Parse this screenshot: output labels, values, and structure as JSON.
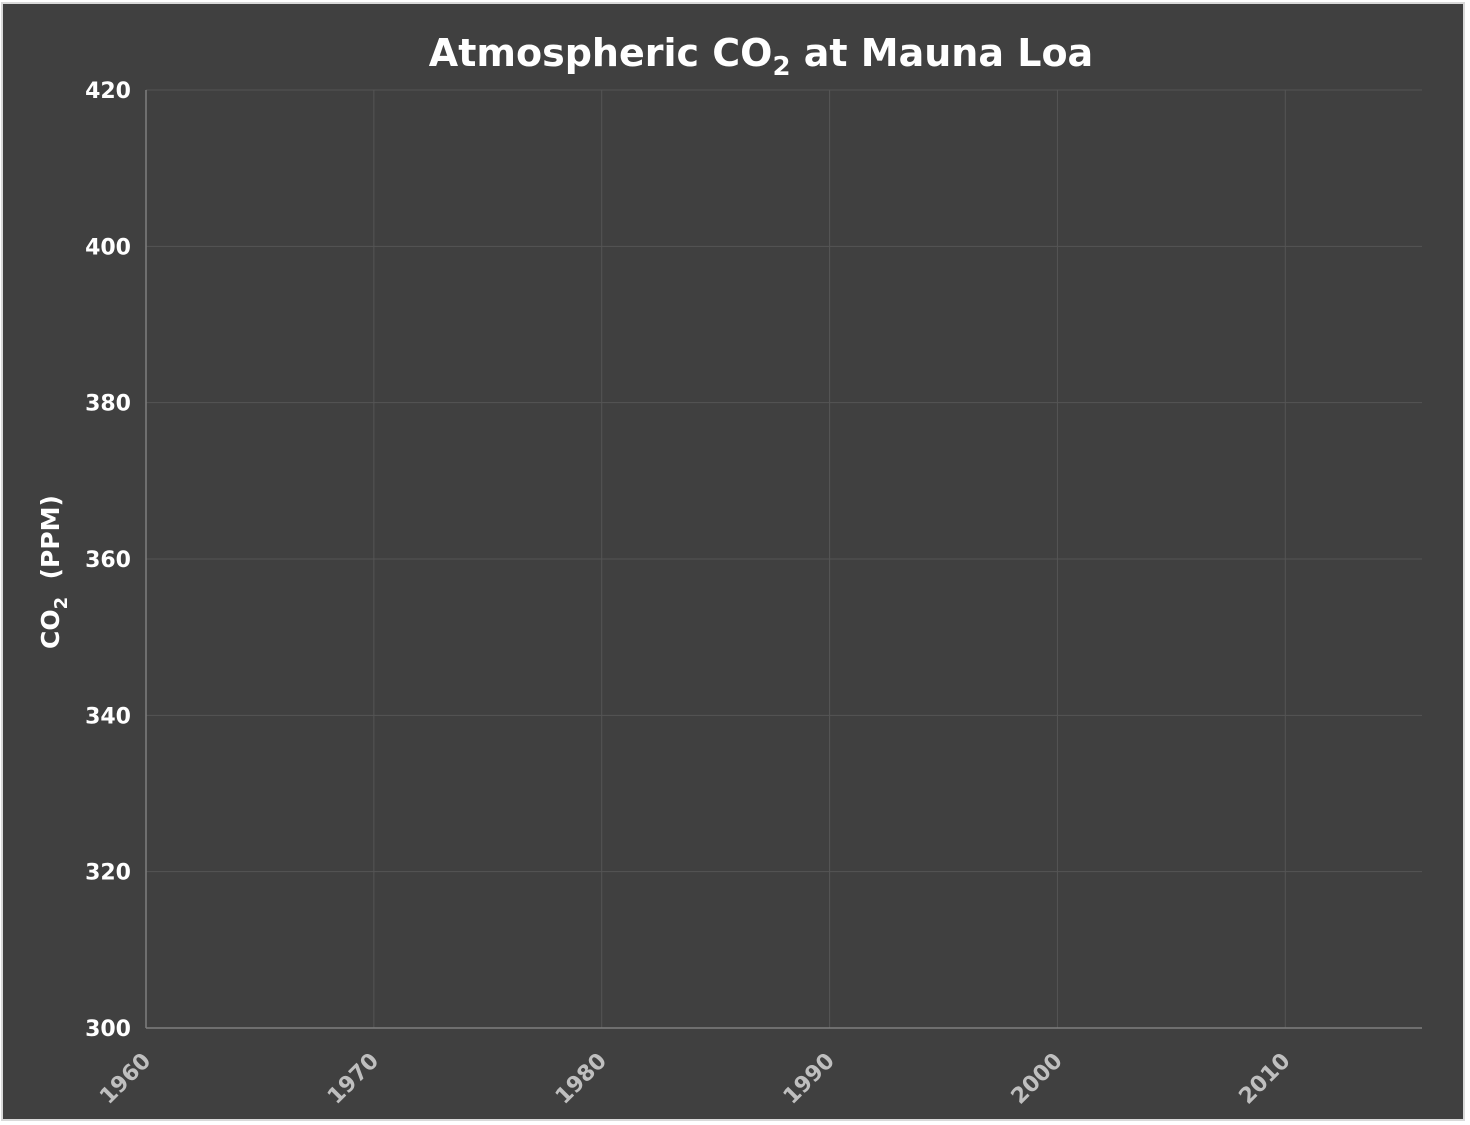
{
  "colors": {
    "background": "#404040",
    "border": "#d9d9d9",
    "gridline": "#555555",
    "axis_line": "#7f7f7f",
    "title_text": "#ffffff",
    "y_tick_text": "#ffffff",
    "x_tick_text": "#bfbfbf"
  },
  "chart_data": {
    "type": "line",
    "title": "Atmospheric CO",
    "title_subscript": "2",
    "title_suffix": " at Mauna Loa",
    "xlabel": "",
    "ylabel": "CO",
    "ylabel_subscript": "2",
    "ylabel_suffix": "  (PPM)",
    "xlim": [
      1960,
      2016
    ],
    "ylim": [
      300,
      420
    ],
    "x_ticks": [
      1960,
      1970,
      1980,
      1990,
      2000,
      2010
    ],
    "x_tick_labels": [
      "1960",
      "1970",
      "1980",
      "1990",
      "2000",
      "2010"
    ],
    "y_ticks": [
      300,
      320,
      340,
      360,
      380,
      400,
      420
    ],
    "y_tick_labels": [
      "300",
      "320",
      "340",
      "360",
      "380",
      "400",
      "420"
    ],
    "grid": true,
    "series": []
  }
}
